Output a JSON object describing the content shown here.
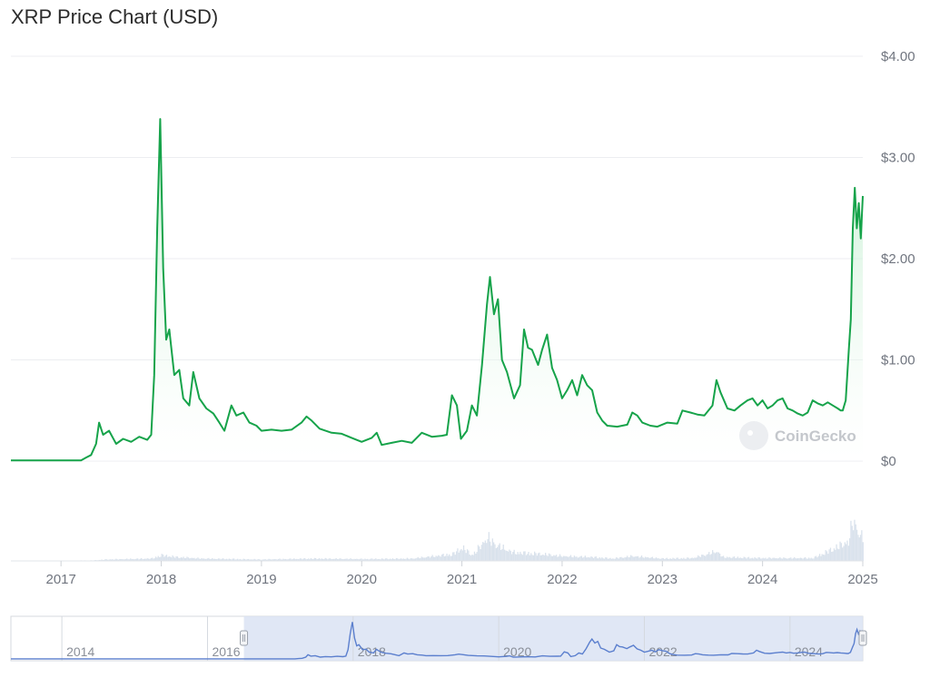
{
  "chart_data": {
    "type": "area",
    "title": "XRP Price Chart (USD)",
    "y_ticks": [
      "$4.00",
      "$3.00",
      "$2.00",
      "$1.00",
      "$0"
    ],
    "ylim": [
      0,
      4
    ],
    "x_ticks": [
      "2017",
      "2018",
      "2019",
      "2020",
      "2021",
      "2022",
      "2023",
      "2024",
      "2025"
    ],
    "xlim": [
      2016.5,
      2025.0
    ],
    "watermark": "CoinGecko",
    "colors": {
      "line": "#16a34a",
      "area_top": "#c8f0d3",
      "volume": "#d9e2ec",
      "navigator": "#5b7fce",
      "nav_bg": "#dbe3f3"
    },
    "series": [
      {
        "values": [
          [
            2016.5,
            0.006
          ],
          [
            2017.2,
            0.007
          ],
          [
            2017.25,
            0.035
          ],
          [
            2017.3,
            0.06
          ],
          [
            2017.35,
            0.17
          ],
          [
            2017.38,
            0.38
          ],
          [
            2017.42,
            0.26
          ],
          [
            2017.48,
            0.3
          ],
          [
            2017.55,
            0.17
          ],
          [
            2017.62,
            0.22
          ],
          [
            2017.7,
            0.19
          ],
          [
            2017.78,
            0.24
          ],
          [
            2017.86,
            0.21
          ],
          [
            2017.9,
            0.26
          ],
          [
            2017.93,
            0.85
          ],
          [
            2017.96,
            2.3
          ],
          [
            2017.99,
            3.38
          ],
          [
            2018.02,
            1.9
          ],
          [
            2018.05,
            1.2
          ],
          [
            2018.08,
            1.3
          ],
          [
            2018.13,
            0.85
          ],
          [
            2018.18,
            0.9
          ],
          [
            2018.22,
            0.62
          ],
          [
            2018.28,
            0.55
          ],
          [
            2018.32,
            0.88
          ],
          [
            2018.38,
            0.62
          ],
          [
            2018.45,
            0.52
          ],
          [
            2018.52,
            0.47
          ],
          [
            2018.58,
            0.38
          ],
          [
            2018.63,
            0.3
          ],
          [
            2018.7,
            0.55
          ],
          [
            2018.75,
            0.45
          ],
          [
            2018.82,
            0.48
          ],
          [
            2018.88,
            0.38
          ],
          [
            2018.95,
            0.35
          ],
          [
            2019.0,
            0.3
          ],
          [
            2019.1,
            0.31
          ],
          [
            2019.2,
            0.3
          ],
          [
            2019.3,
            0.31
          ],
          [
            2019.4,
            0.38
          ],
          [
            2019.45,
            0.44
          ],
          [
            2019.5,
            0.4
          ],
          [
            2019.58,
            0.32
          ],
          [
            2019.7,
            0.28
          ],
          [
            2019.8,
            0.27
          ],
          [
            2019.9,
            0.23
          ],
          [
            2020.0,
            0.19
          ],
          [
            2020.1,
            0.23
          ],
          [
            2020.15,
            0.28
          ],
          [
            2020.2,
            0.16
          ],
          [
            2020.3,
            0.18
          ],
          [
            2020.4,
            0.2
          ],
          [
            2020.5,
            0.18
          ],
          [
            2020.6,
            0.28
          ],
          [
            2020.7,
            0.24
          ],
          [
            2020.8,
            0.25
          ],
          [
            2020.85,
            0.26
          ],
          [
            2020.9,
            0.65
          ],
          [
            2020.95,
            0.55
          ],
          [
            2020.99,
            0.22
          ],
          [
            2021.05,
            0.3
          ],
          [
            2021.1,
            0.55
          ],
          [
            2021.15,
            0.45
          ],
          [
            2021.2,
            0.95
          ],
          [
            2021.25,
            1.55
          ],
          [
            2021.28,
            1.82
          ],
          [
            2021.32,
            1.45
          ],
          [
            2021.36,
            1.6
          ],
          [
            2021.4,
            1.0
          ],
          [
            2021.45,
            0.88
          ],
          [
            2021.52,
            0.62
          ],
          [
            2021.58,
            0.75
          ],
          [
            2021.62,
            1.3
          ],
          [
            2021.66,
            1.12
          ],
          [
            2021.7,
            1.1
          ],
          [
            2021.76,
            0.95
          ],
          [
            2021.8,
            1.1
          ],
          [
            2021.85,
            1.25
          ],
          [
            2021.9,
            0.92
          ],
          [
            2021.95,
            0.8
          ],
          [
            2022.0,
            0.62
          ],
          [
            2022.05,
            0.7
          ],
          [
            2022.1,
            0.8
          ],
          [
            2022.15,
            0.65
          ],
          [
            2022.2,
            0.85
          ],
          [
            2022.25,
            0.75
          ],
          [
            2022.3,
            0.7
          ],
          [
            2022.35,
            0.48
          ],
          [
            2022.4,
            0.4
          ],
          [
            2022.45,
            0.35
          ],
          [
            2022.55,
            0.34
          ],
          [
            2022.65,
            0.36
          ],
          [
            2022.7,
            0.48
          ],
          [
            2022.75,
            0.45
          ],
          [
            2022.8,
            0.38
          ],
          [
            2022.88,
            0.35
          ],
          [
            2022.95,
            0.34
          ],
          [
            2023.05,
            0.38
          ],
          [
            2023.15,
            0.37
          ],
          [
            2023.2,
            0.5
          ],
          [
            2023.28,
            0.48
          ],
          [
            2023.35,
            0.46
          ],
          [
            2023.42,
            0.45
          ],
          [
            2023.5,
            0.55
          ],
          [
            2023.54,
            0.8
          ],
          [
            2023.58,
            0.68
          ],
          [
            2023.65,
            0.52
          ],
          [
            2023.72,
            0.5
          ],
          [
            2023.78,
            0.55
          ],
          [
            2023.85,
            0.6
          ],
          [
            2023.9,
            0.62
          ],
          [
            2023.95,
            0.55
          ],
          [
            2024.0,
            0.6
          ],
          [
            2024.05,
            0.52
          ],
          [
            2024.1,
            0.55
          ],
          [
            2024.15,
            0.6
          ],
          [
            2024.2,
            0.62
          ],
          [
            2024.25,
            0.52
          ],
          [
            2024.3,
            0.5
          ],
          [
            2024.35,
            0.47
          ],
          [
            2024.4,
            0.45
          ],
          [
            2024.45,
            0.48
          ],
          [
            2024.5,
            0.6
          ],
          [
            2024.55,
            0.57
          ],
          [
            2024.6,
            0.55
          ],
          [
            2024.65,
            0.58
          ],
          [
            2024.7,
            0.55
          ],
          [
            2024.75,
            0.52
          ],
          [
            2024.78,
            0.5
          ],
          [
            2024.8,
            0.5
          ],
          [
            2024.83,
            0.6
          ],
          [
            2024.86,
            1.1
          ],
          [
            2024.88,
            1.4
          ],
          [
            2024.9,
            2.3
          ],
          [
            2024.92,
            2.7
          ],
          [
            2024.94,
            2.3
          ],
          [
            2024.96,
            2.55
          ],
          [
            2024.98,
            2.2
          ],
          [
            2025.0,
            2.62
          ]
        ]
      }
    ],
    "volume_max": 1.0,
    "volume": [
      [
        2016.5,
        0.0
      ],
      [
        2017.3,
        0.01
      ],
      [
        2017.45,
        0.03
      ],
      [
        2017.9,
        0.05
      ],
      [
        2018.0,
        0.12
      ],
      [
        2018.15,
        0.08
      ],
      [
        2018.4,
        0.05
      ],
      [
        2018.7,
        0.04
      ],
      [
        2019.0,
        0.03
      ],
      [
        2019.5,
        0.05
      ],
      [
        2020.0,
        0.04
      ],
      [
        2020.5,
        0.05
      ],
      [
        2020.9,
        0.14
      ],
      [
        2021.0,
        0.28
      ],
      [
        2021.1,
        0.12
      ],
      [
        2021.25,
        0.48
      ],
      [
        2021.35,
        0.32
      ],
      [
        2021.5,
        0.18
      ],
      [
        2021.75,
        0.15
      ],
      [
        2022.0,
        0.1
      ],
      [
        2022.3,
        0.08
      ],
      [
        2022.5,
        0.05
      ],
      [
        2022.7,
        0.1
      ],
      [
        2023.0,
        0.05
      ],
      [
        2023.3,
        0.06
      ],
      [
        2023.54,
        0.2
      ],
      [
        2023.6,
        0.08
      ],
      [
        2024.0,
        0.06
      ],
      [
        2024.5,
        0.06
      ],
      [
        2024.85,
        0.4
      ],
      [
        2024.9,
        0.85
      ],
      [
        2024.95,
        0.6
      ],
      [
        2025.0,
        0.45
      ]
    ],
    "navigator": {
      "x_ticks": [
        "2014",
        "2016",
        "2018",
        "2020",
        "2022",
        "2024"
      ],
      "xlim": [
        2013.3,
        2025.0
      ],
      "selected_range": [
        2016.5,
        2025.0
      ]
    }
  }
}
